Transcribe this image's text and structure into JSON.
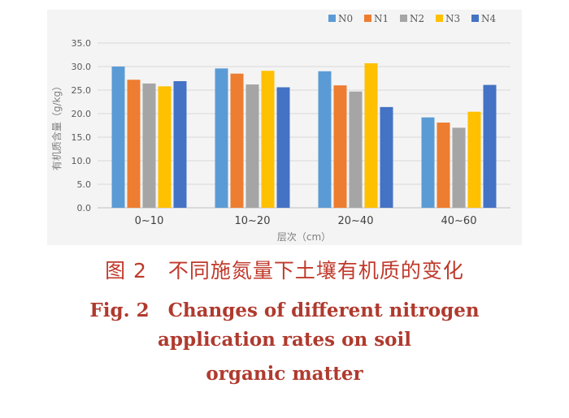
{
  "chart_data": {
    "type": "bar",
    "title": "",
    "xlabel": "层次（cm）",
    "ylabel": "有机质含量（g/kg）",
    "ylim": [
      0,
      35
    ],
    "yticks": [
      "0.0",
      "5.0",
      "10.0",
      "15.0",
      "20.0",
      "25.0",
      "30.0",
      "35.0"
    ],
    "categories": [
      "0~10",
      "10~20",
      "20~40",
      "40~60"
    ],
    "legend_position": "top-right",
    "grid": true,
    "series": [
      {
        "name": "N0",
        "color": "#5b9bd5",
        "values": [
          30.0,
          29.6,
          29.0,
          19.2
        ]
      },
      {
        "name": "N1",
        "color": "#ed7d31",
        "values": [
          27.2,
          28.5,
          26.0,
          18.1
        ]
      },
      {
        "name": "N2",
        "color": "#a5a5a5",
        "values": [
          26.4,
          26.2,
          24.7,
          17.0
        ]
      },
      {
        "name": "N3",
        "color": "#ffc000",
        "values": [
          25.8,
          29.1,
          30.7,
          20.4
        ]
      },
      {
        "name": "N4",
        "color": "#4472c4",
        "values": [
          26.9,
          25.6,
          21.4,
          26.1
        ]
      }
    ]
  },
  "caption": {
    "cn": "图 2　不同施氮量下土壤有机质的变化",
    "en_line1": "Fig. 2　Changes of different nitrogen",
    "en_line2": "application rates on soil",
    "en_line3": "organic matter"
  }
}
